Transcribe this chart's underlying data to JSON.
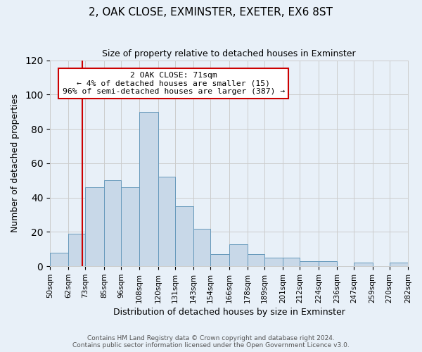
{
  "title": "2, OAK CLOSE, EXMINSTER, EXETER, EX6 8ST",
  "subtitle": "Size of property relative to detached houses in Exminster",
  "xlabel": "Distribution of detached houses by size in Exminster",
  "ylabel": "Number of detached properties",
  "footer_lines": [
    "Contains HM Land Registry data © Crown copyright and database right 2024.",
    "Contains public sector information licensed under the Open Government Licence v3.0."
  ],
  "bins": [
    50,
    62,
    73,
    85,
    96,
    108,
    120,
    131,
    143,
    154,
    166,
    178,
    189,
    201,
    212,
    224,
    236,
    247,
    259,
    270,
    282
  ],
  "bin_labels": [
    "50sqm",
    "62sqm",
    "73sqm",
    "85sqm",
    "96sqm",
    "108sqm",
    "120sqm",
    "131sqm",
    "143sqm",
    "154sqm",
    "166sqm",
    "178sqm",
    "189sqm",
    "201sqm",
    "212sqm",
    "224sqm",
    "236sqm",
    "247sqm",
    "259sqm",
    "270sqm",
    "282sqm"
  ],
  "bar_heights": [
    8,
    19,
    46,
    50,
    46,
    90,
    52,
    35,
    22,
    7,
    13,
    7,
    5,
    5,
    3,
    3,
    0,
    2,
    0,
    2
  ],
  "bar_color": "#c8d8e8",
  "bar_edge_color": "#6699bb",
  "property_line_x": 71,
  "property_line_color": "#cc0000",
  "annotation_text": "2 OAK CLOSE: 71sqm\n← 4% of detached houses are smaller (15)\n96% of semi-detached houses are larger (387) →",
  "annotation_box_color": "#ffffff",
  "annotation_box_edge_color": "#cc0000",
  "ylim": [
    0,
    120
  ],
  "yticks": [
    0,
    20,
    40,
    60,
    80,
    100,
    120
  ],
  "grid_color": "#cccccc",
  "background_color": "#e8f0f8",
  "plot_area_color": "#e8f0f8"
}
